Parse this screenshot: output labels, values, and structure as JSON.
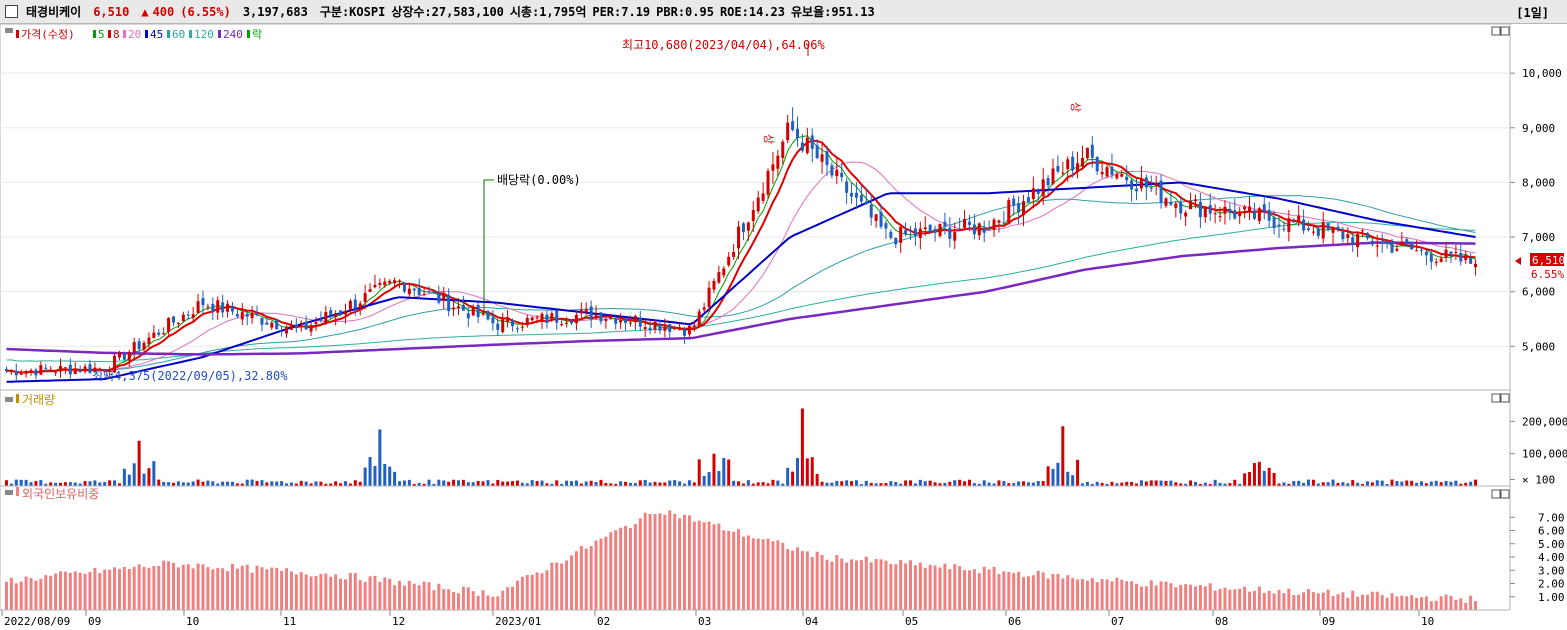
{
  "header": {
    "name": "태경비케이",
    "price": "6,510",
    "change_symbol": "▲",
    "change": "400",
    "change_pct": "(6.55%)",
    "volume": "3,197,683",
    "market": "구분:KOSPI",
    "listed_shares": "상장수:27,583,100",
    "market_cap": "시총:1,795억",
    "per": "PER:7.19",
    "pbr": "PBR:0.95",
    "roe": "ROE:14.23",
    "reserve_ratio": "유보율:951.13",
    "period": "[1일]"
  },
  "price_panel": {
    "legend": [
      {
        "label": "가격(수정)",
        "color": "#d40000"
      },
      {
        "label": "5",
        "color": "#00a000"
      },
      {
        "label": "8",
        "color": "#d40000"
      },
      {
        "label": "20",
        "color": "#e070c0"
      },
      {
        "label": "45",
        "color": "#0000c8"
      },
      {
        "label": "60",
        "color": "#2e9dac"
      },
      {
        "label": "120",
        "color": "#2eae9c"
      },
      {
        "label": "240",
        "color": "#7a28c0"
      },
      {
        "label": "락",
        "color": "#00a000"
      }
    ],
    "y_labels": [
      "10,000",
      "9,000",
      "8,000",
      "7,000",
      "6,000",
      "5,000"
    ],
    "current_price_tag": "6,510",
    "current_pct_tag": "6.55%",
    "annotations": {
      "high": "최고10,680(2023/04/04),64.06%",
      "low": "최저4,375(2022/09/05),32.80%",
      "dividend": "배당락(0.00%)",
      "up_mark_1": "상",
      "up_mark_2": "상"
    }
  },
  "volume_panel": {
    "title": "거래량",
    "y_labels": [
      "200,000",
      "100,000",
      "× 100"
    ]
  },
  "foreign_panel": {
    "title": "외국인보유비중",
    "y_labels": [
      "7.00",
      "6.00",
      "5.00",
      "4.00",
      "3.00",
      "2.00",
      "1.00"
    ]
  },
  "x_axis": {
    "labels": [
      "2022/08/09",
      "09",
      "10",
      "11",
      "12",
      "2023/01",
      "02",
      "03",
      "04",
      "05",
      "06",
      "07",
      "08",
      "09",
      "10"
    ]
  },
  "colors": {
    "up": "#d40000",
    "down": "#2060c0",
    "ma5": "#00a000",
    "ma8": "#e00000",
    "ma20": "#e070c0",
    "ma45": "#0000c8",
    "ma60": "#2e9dac",
    "ma120": "#2eae9c",
    "ma240": "#7a28c0",
    "foreign_bar": "#f08080"
  },
  "chart_data": [
    {
      "type": "line",
      "title": "가격(수정)",
      "x": [
        "2022/08/09",
        "2022/09",
        "2022/10",
        "2022/11",
        "2022/12",
        "2023/01",
        "2023/02",
        "2023/03",
        "2023/04",
        "2023/05",
        "2023/06",
        "2023/07",
        "2023/08",
        "2023/09",
        "2023/10",
        "2023/10 end"
      ],
      "series": [
        {
          "name": "가격(수정)",
          "values": [
            4550,
            4600,
            5800,
            5300,
            6200,
            5400,
            5600,
            5300,
            9000,
            7000,
            7200,
            8500,
            7600,
            7300,
            6900,
            6510
          ]
        },
        {
          "name": "45",
          "values": [
            4350,
            4400,
            4800,
            5400,
            5900,
            5800,
            5600,
            5400,
            7000,
            7800,
            7800,
            7900,
            8000,
            7700,
            7300,
            7000
          ]
        },
        {
          "name": "240",
          "values": [
            4950,
            4880,
            4850,
            4870,
            4950,
            5030,
            5100,
            5150,
            5500,
            5750,
            6000,
            6400,
            6650,
            6800,
            6900,
            6880
          ]
        }
      ],
      "ylim": [
        4200,
        10900
      ]
    },
    {
      "type": "bar",
      "title": "거래량",
      "categories": [
        "2022/09 spike",
        "2022/12 spike",
        "2023/03 spike",
        "2023/04 spike",
        "2023/06 spike",
        "2023/08 spike"
      ],
      "values": [
        140000,
        175000,
        100000,
        240000,
        185000,
        75000
      ]
    },
    {
      "type": "bar",
      "title": "외국인보유비중",
      "categories": [
        "2022/08",
        "2022/10",
        "2022/12",
        "2023/02",
        "2023/03",
        "2023/04",
        "2023/05",
        "2023/07",
        "2023/09",
        "2023/10"
      ],
      "values": [
        2.2,
        3.5,
        2.7,
        1.2,
        7.6,
        4.0,
        3.0,
        2.0,
        1.3,
        0.8
      ],
      "ylim": [
        0,
        8
      ]
    }
  ]
}
